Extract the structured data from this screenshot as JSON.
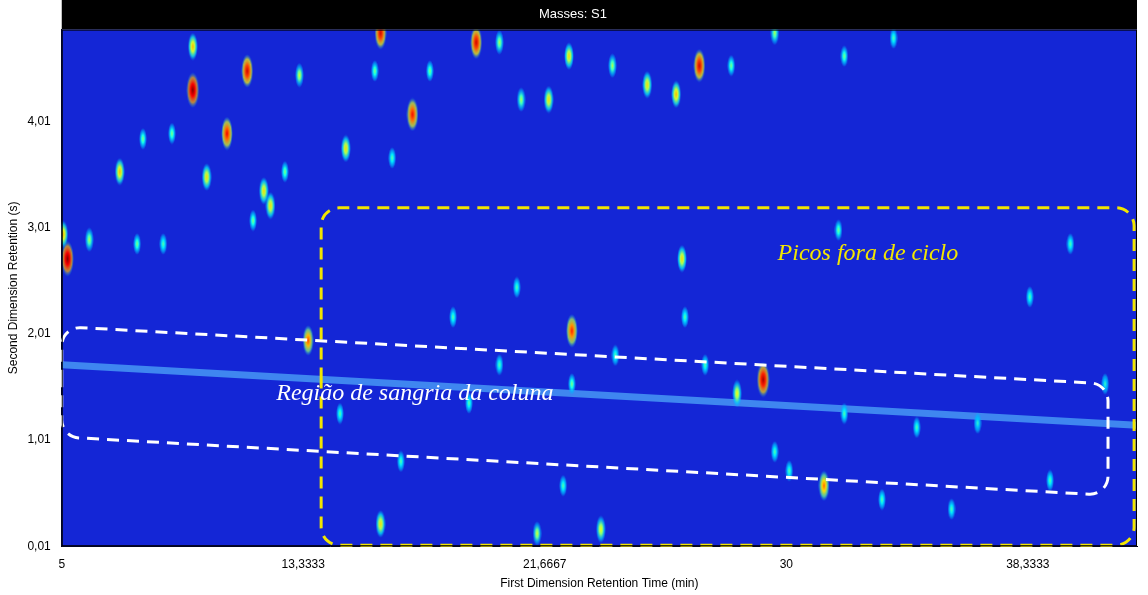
{
  "chart_data": {
    "type": "scatter",
    "title": "Masses: S1",
    "x_label": "First Dimension Retention Time (min)",
    "y_label": "Second Dimension Retention (s)",
    "xlim": [
      5,
      42.1
    ],
    "ylim": [
      0.01,
      4.88
    ],
    "xticks": [
      5,
      {
        "value": 13.3333,
        "label": "13,3333"
      },
      {
        "value": 21.6667,
        "label": "21,6667"
      },
      30,
      {
        "value": 38.3333,
        "label": "38,3333"
      }
    ],
    "yticks": [
      {
        "value": 0.01,
        "label": "0,01"
      },
      {
        "value": 1.01,
        "label": "1,01"
      },
      {
        "value": 2.01,
        "label": "2,01"
      },
      {
        "value": 3.01,
        "label": "3,01"
      },
      {
        "value": 4.01,
        "label": "4,01"
      }
    ],
    "grid": false,
    "series": [
      {
        "type": "line",
        "color": "#3f86f0",
        "x": [
          5,
          42.1
        ],
        "y": [
          1.72,
          1.15
        ]
      },
      {
        "type": "scatter",
        "marker": "ellipse",
        "x": [
          5.2,
          5.05,
          5.95,
          7.0,
          7.6,
          7.8,
          8.5,
          8.8,
          9.52,
          9.52,
          10.0,
          10.7,
          11.4,
          11.6,
          11.97,
          12.2,
          12.7,
          13.2,
          13.5,
          14.8,
          16.0,
          15.8,
          16.4,
          17.1,
          17.7,
          19.3,
          20.1,
          20.85,
          21.8,
          22.5,
          24.0,
          25.2,
          26.2,
          27.0,
          28.1,
          29.6,
          32.0,
          33.7,
          16.0,
          14.6,
          16.7,
          19.05,
          20.1,
          21.4,
          22.6,
          22.6,
          23.6,
          24.1,
          26.4,
          26.5,
          27.2,
          28.3,
          29.2,
          29.6,
          30.1,
          31.3,
          31.8,
          32.0,
          33.3,
          34.5,
          35.7,
          38.4,
          39.1,
          39.8,
          41.0,
          18.5,
          20.7,
          22.3,
          36.6
        ],
        "y": [
          2.72,
          2.95,
          2.9,
          3.54,
          2.86,
          3.85,
          2.86,
          3.9,
          4.31,
          4.72,
          3.49,
          3.9,
          4.49,
          3.08,
          3.36,
          3.22,
          3.54,
          4.45,
          1.95,
          3.76,
          4.85,
          4.49,
          3.67,
          4.08,
          4.49,
          4.76,
          4.76,
          4.22,
          4.22,
          4.63,
          4.54,
          4.36,
          4.27,
          4.54,
          4.54,
          4.85,
          4.63,
          4.8,
          0.22,
          1.26,
          0.81,
          1.36,
          1.72,
          0.13,
          2.04,
          1.54,
          0.17,
          1.81,
          2.72,
          2.17,
          1.72,
          1.45,
          1.58,
          0.9,
          0.72,
          0.58,
          2.99,
          1.26,
          0.45,
          1.13,
          0.36,
          2.36,
          0.63,
          2.86,
          1.54,
          2.17,
          2.45,
          0.58,
          1.17
        ],
        "intensity": [
          100,
          60,
          40,
          60,
          35,
          35,
          30,
          35,
          100,
          60,
          55,
          85,
          90,
          35,
          55,
          55,
          35,
          45,
          75,
          55,
          90,
          35,
          30,
          85,
          35,
          90,
          40,
          40,
          55,
          55,
          40,
          55,
          60,
          90,
          35,
          40,
          35,
          30,
          55,
          30,
          30,
          30,
          30,
          45,
          80,
          35,
          50,
          30,
          55,
          30,
          30,
          50,
          95,
          30,
          30,
          70,
          35,
          30,
          30,
          30,
          30,
          30,
          30,
          30,
          25,
          30,
          30,
          30,
          25
        ]
      }
    ],
    "annotations": [
      {
        "text": "Picos fora de ciclo",
        "color": "#f2e600",
        "x": 29.7,
        "y": 2.77,
        "outline": [
          [
            13.95,
            0.02
          ],
          [
            42.0,
            0.02
          ],
          [
            42.0,
            3.2
          ],
          [
            13.95,
            3.2
          ]
        ]
      },
      {
        "text": "Região de sangria da coluna",
        "color": "#ffffff",
        "x": 12.4,
        "y": 1.45,
        "outline": [
          [
            5,
            2.08
          ],
          [
            41.1,
            1.54
          ],
          [
            41.1,
            0.49
          ],
          [
            5,
            1.04
          ]
        ]
      }
    ]
  }
}
